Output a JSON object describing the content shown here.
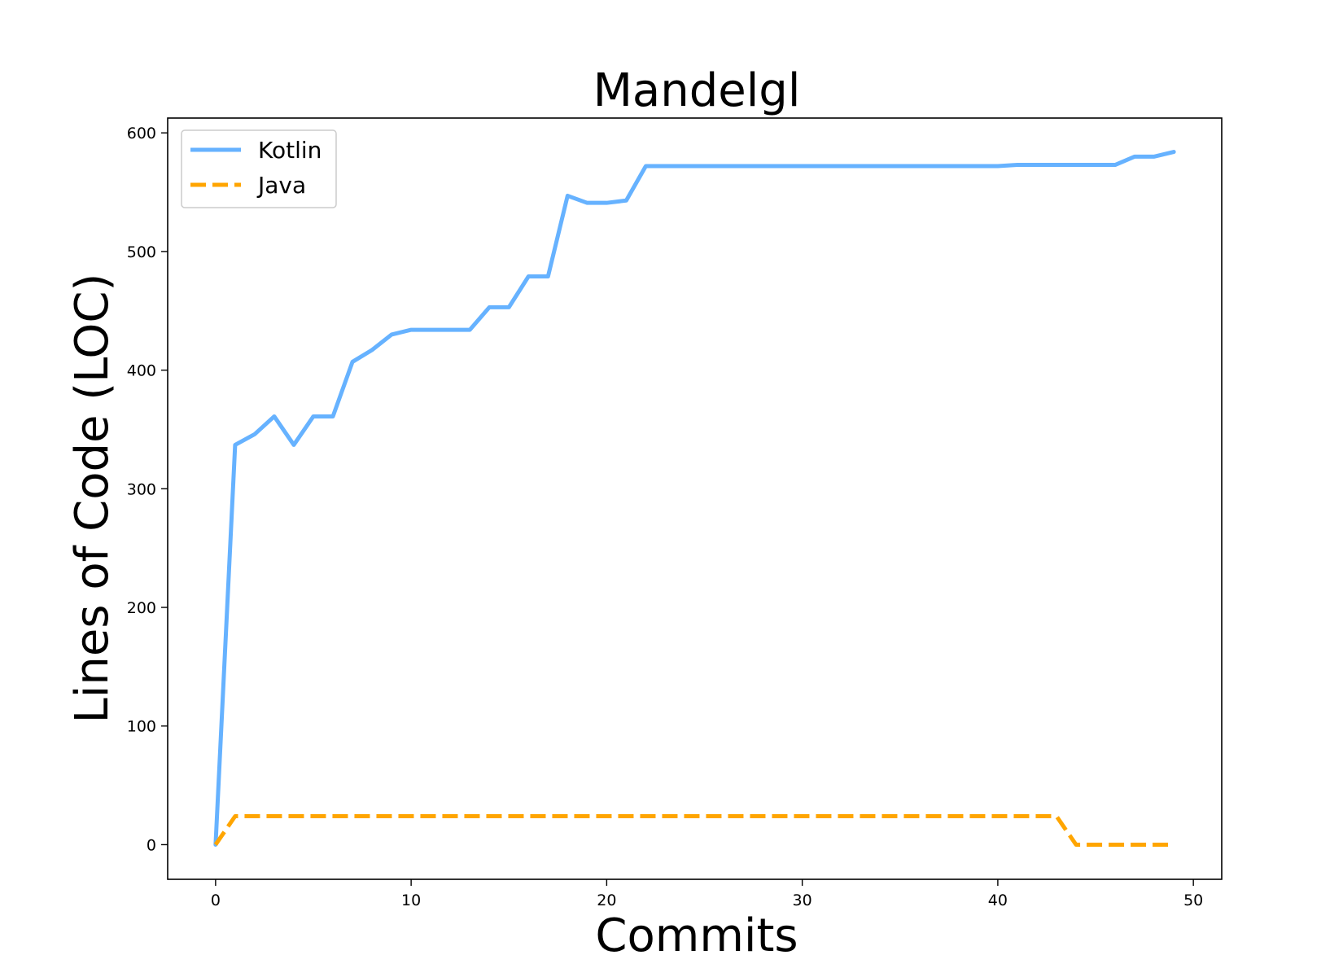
{
  "chart_data": {
    "type": "line",
    "title": "Mandelgl",
    "xlabel": "Commits",
    "ylabel": "Lines of Code (LOC)",
    "xlim": [
      -2.45,
      51.45
    ],
    "ylim": [
      -29.2,
      612.5
    ],
    "xticks": [
      0,
      10,
      20,
      30,
      40,
      50
    ],
    "yticks": [
      0,
      100,
      200,
      300,
      400,
      500,
      600
    ],
    "grid": false,
    "legend_position": "top-left",
    "x": [
      0,
      1,
      2,
      3,
      4,
      5,
      6,
      7,
      8,
      9,
      10,
      11,
      12,
      13,
      14,
      15,
      16,
      17,
      18,
      19,
      20,
      21,
      22,
      23,
      24,
      25,
      26,
      27,
      28,
      29,
      30,
      31,
      32,
      33,
      34,
      35,
      36,
      37,
      38,
      39,
      40,
      41,
      42,
      43,
      44,
      45,
      46,
      47,
      48,
      49
    ],
    "series": [
      {
        "name": "Kotlin",
        "color": "#66b2ff",
        "style": "solid",
        "values": [
          0,
          337,
          346,
          361,
          337,
          361,
          361,
          407,
          417,
          430,
          434,
          434,
          434,
          434,
          453,
          453,
          479,
          479,
          547,
          541,
          541,
          543,
          572,
          572,
          572,
          572,
          572,
          572,
          572,
          572,
          572,
          572,
          572,
          572,
          572,
          572,
          572,
          572,
          572,
          572,
          572,
          573,
          573,
          573,
          573,
          573,
          573,
          580,
          580,
          584
        ]
      },
      {
        "name": "Java",
        "color": "#ffa500",
        "style": "dashed",
        "values": [
          0,
          24,
          24,
          24,
          24,
          24,
          24,
          24,
          24,
          24,
          24,
          24,
          24,
          24,
          24,
          24,
          24,
          24,
          24,
          24,
          24,
          24,
          24,
          24,
          24,
          24,
          24,
          24,
          24,
          24,
          24,
          24,
          24,
          24,
          24,
          24,
          24,
          24,
          24,
          24,
          24,
          24,
          24,
          24,
          0,
          0,
          0,
          0,
          0,
          0
        ]
      }
    ]
  }
}
